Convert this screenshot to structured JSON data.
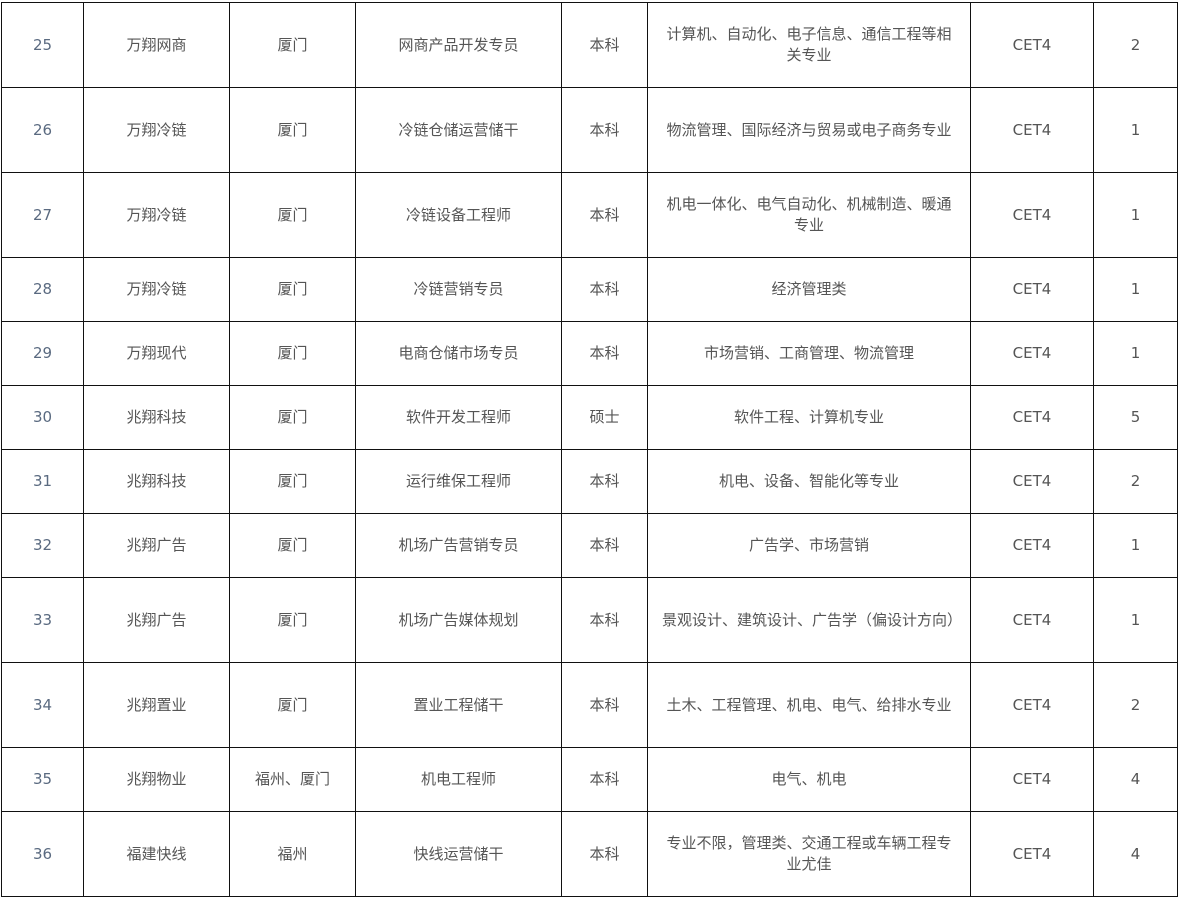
{
  "rows": [
    {
      "no": "25",
      "company": "万翔网商",
      "city": "厦门",
      "position": "网商产品开发专员",
      "degree": "本科",
      "major": "计算机、自动化、电子信息、通信工程等相关专业",
      "english": "CET4",
      "count": "2"
    },
    {
      "no": "26",
      "company": "万翔冷链",
      "city": "厦门",
      "position": "冷链仓储运营储干",
      "degree": "本科",
      "major": "物流管理、国际经济与贸易或电子商务专业",
      "english": "CET4",
      "count": "1"
    },
    {
      "no": "27",
      "company": "万翔冷链",
      "city": "厦门",
      "position": "冷链设备工程师",
      "degree": "本科",
      "major": "机电一体化、电气自动化、机械制造、暖通专业",
      "english": "CET4",
      "count": "1"
    },
    {
      "no": "28",
      "company": "万翔冷链",
      "city": "厦门",
      "position": "冷链营销专员",
      "degree": "本科",
      "major": "经济管理类",
      "english": "CET4",
      "count": "1"
    },
    {
      "no": "29",
      "company": "万翔现代",
      "city": "厦门",
      "position": "电商仓储市场专员",
      "degree": "本科",
      "major": "市场营销、工商管理、物流管理",
      "english": "CET4",
      "count": "1"
    },
    {
      "no": "30",
      "company": "兆翔科技",
      "city": "厦门",
      "position": "软件开发工程师",
      "degree": "硕士",
      "major": "软件工程、计算机专业",
      "english": "CET4",
      "count": "5"
    },
    {
      "no": "31",
      "company": "兆翔科技",
      "city": "厦门",
      "position": "运行维保工程师",
      "degree": "本科",
      "major": "机电、设备、智能化等专业",
      "english": "CET4",
      "count": "2"
    },
    {
      "no": "32",
      "company": "兆翔广告",
      "city": "厦门",
      "position": "机场广告营销专员",
      "degree": "本科",
      "major": "广告学、市场营销",
      "english": "CET4",
      "count": "1"
    },
    {
      "no": "33",
      "company": "兆翔广告",
      "city": "厦门",
      "position": "机场广告媒体规划",
      "degree": "本科",
      "major": "景观设计、建筑设计、广告学（偏设计方向）",
      "english": "CET4",
      "count": "1"
    },
    {
      "no": "34",
      "company": "兆翔置业",
      "city": "厦门",
      "position": "置业工程储干",
      "degree": "本科",
      "major": "土木、工程管理、机电、电气、给排水专业",
      "english": "CET4",
      "count": "2"
    },
    {
      "no": "35",
      "company": "兆翔物业",
      "city": "福州、厦门",
      "position": "机电工程师",
      "degree": "本科",
      "major": "电气、机电",
      "english": "CET4",
      "count": "4"
    },
    {
      "no": "36",
      "company": "福建快线",
      "city": "福州",
      "position": "快线运营储干",
      "degree": "本科",
      "major": "专业不限，管理类、交通工程或车辆工程专业尤佳",
      "english": "CET4",
      "count": "4"
    }
  ]
}
